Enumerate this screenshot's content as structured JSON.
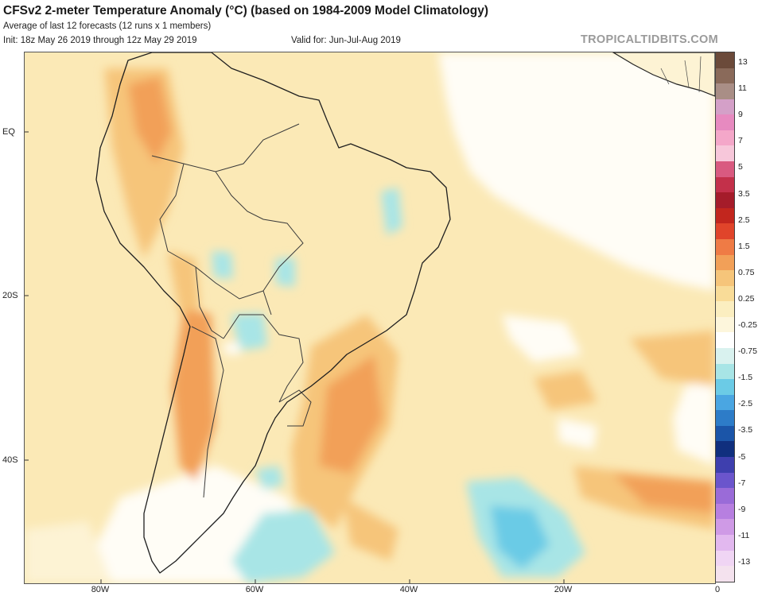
{
  "header": {
    "title": "CFSv2 2-meter Temperature Anomaly (°C) (based on 1984-2009 Model Climatology)",
    "subtitle_1": "Average of last 12 forecasts (12 runs x 1 members)",
    "init": "Init: 18z May 26 2019 through 12z May 29 2019",
    "valid": "Valid for: Jun-Jul-Aug 2019",
    "credit": "TROPICALTIDBITS.COM"
  },
  "axes": {
    "lat_labels": [
      "EQ",
      "20S",
      "40S"
    ],
    "lon_labels": [
      "80W",
      "60W",
      "40W",
      "20W",
      "0"
    ]
  },
  "colorbar": {
    "labels": [
      "13",
      "11",
      "9",
      "7",
      "5",
      "3.5",
      "2.5",
      "1.5",
      "0.75",
      "0.25",
      "-0.25",
      "-0.75",
      "-1.5",
      "-2.5",
      "-3.5",
      "-5",
      "-7",
      "-9",
      "-11",
      "-13"
    ],
    "colors": [
      "#6b4a3a",
      "#8a6a5a",
      "#a98e86",
      "#d4a0c8",
      "#e78ac0",
      "#f4a7c9",
      "#f7c7da",
      "#d95a80",
      "#c3304a",
      "#a51c2a",
      "#c2261e",
      "#e0442a",
      "#ef7b45",
      "#f2a058",
      "#f6c57a",
      "#f9dc98",
      "#fbeec0",
      "#fdf6dc",
      "#ffffff",
      "#d9f2ef",
      "#a8e5e6",
      "#6bcbe6",
      "#4aa6e2",
      "#2d7cc8",
      "#1b55a8",
      "#102f7e",
      "#3e3fae",
      "#6b55cc",
      "#9a6bd8",
      "#b77fe0",
      "#cf9ae6",
      "#e2b8ef",
      "#f0d5f4",
      "#f4e2ee"
    ]
  }
}
